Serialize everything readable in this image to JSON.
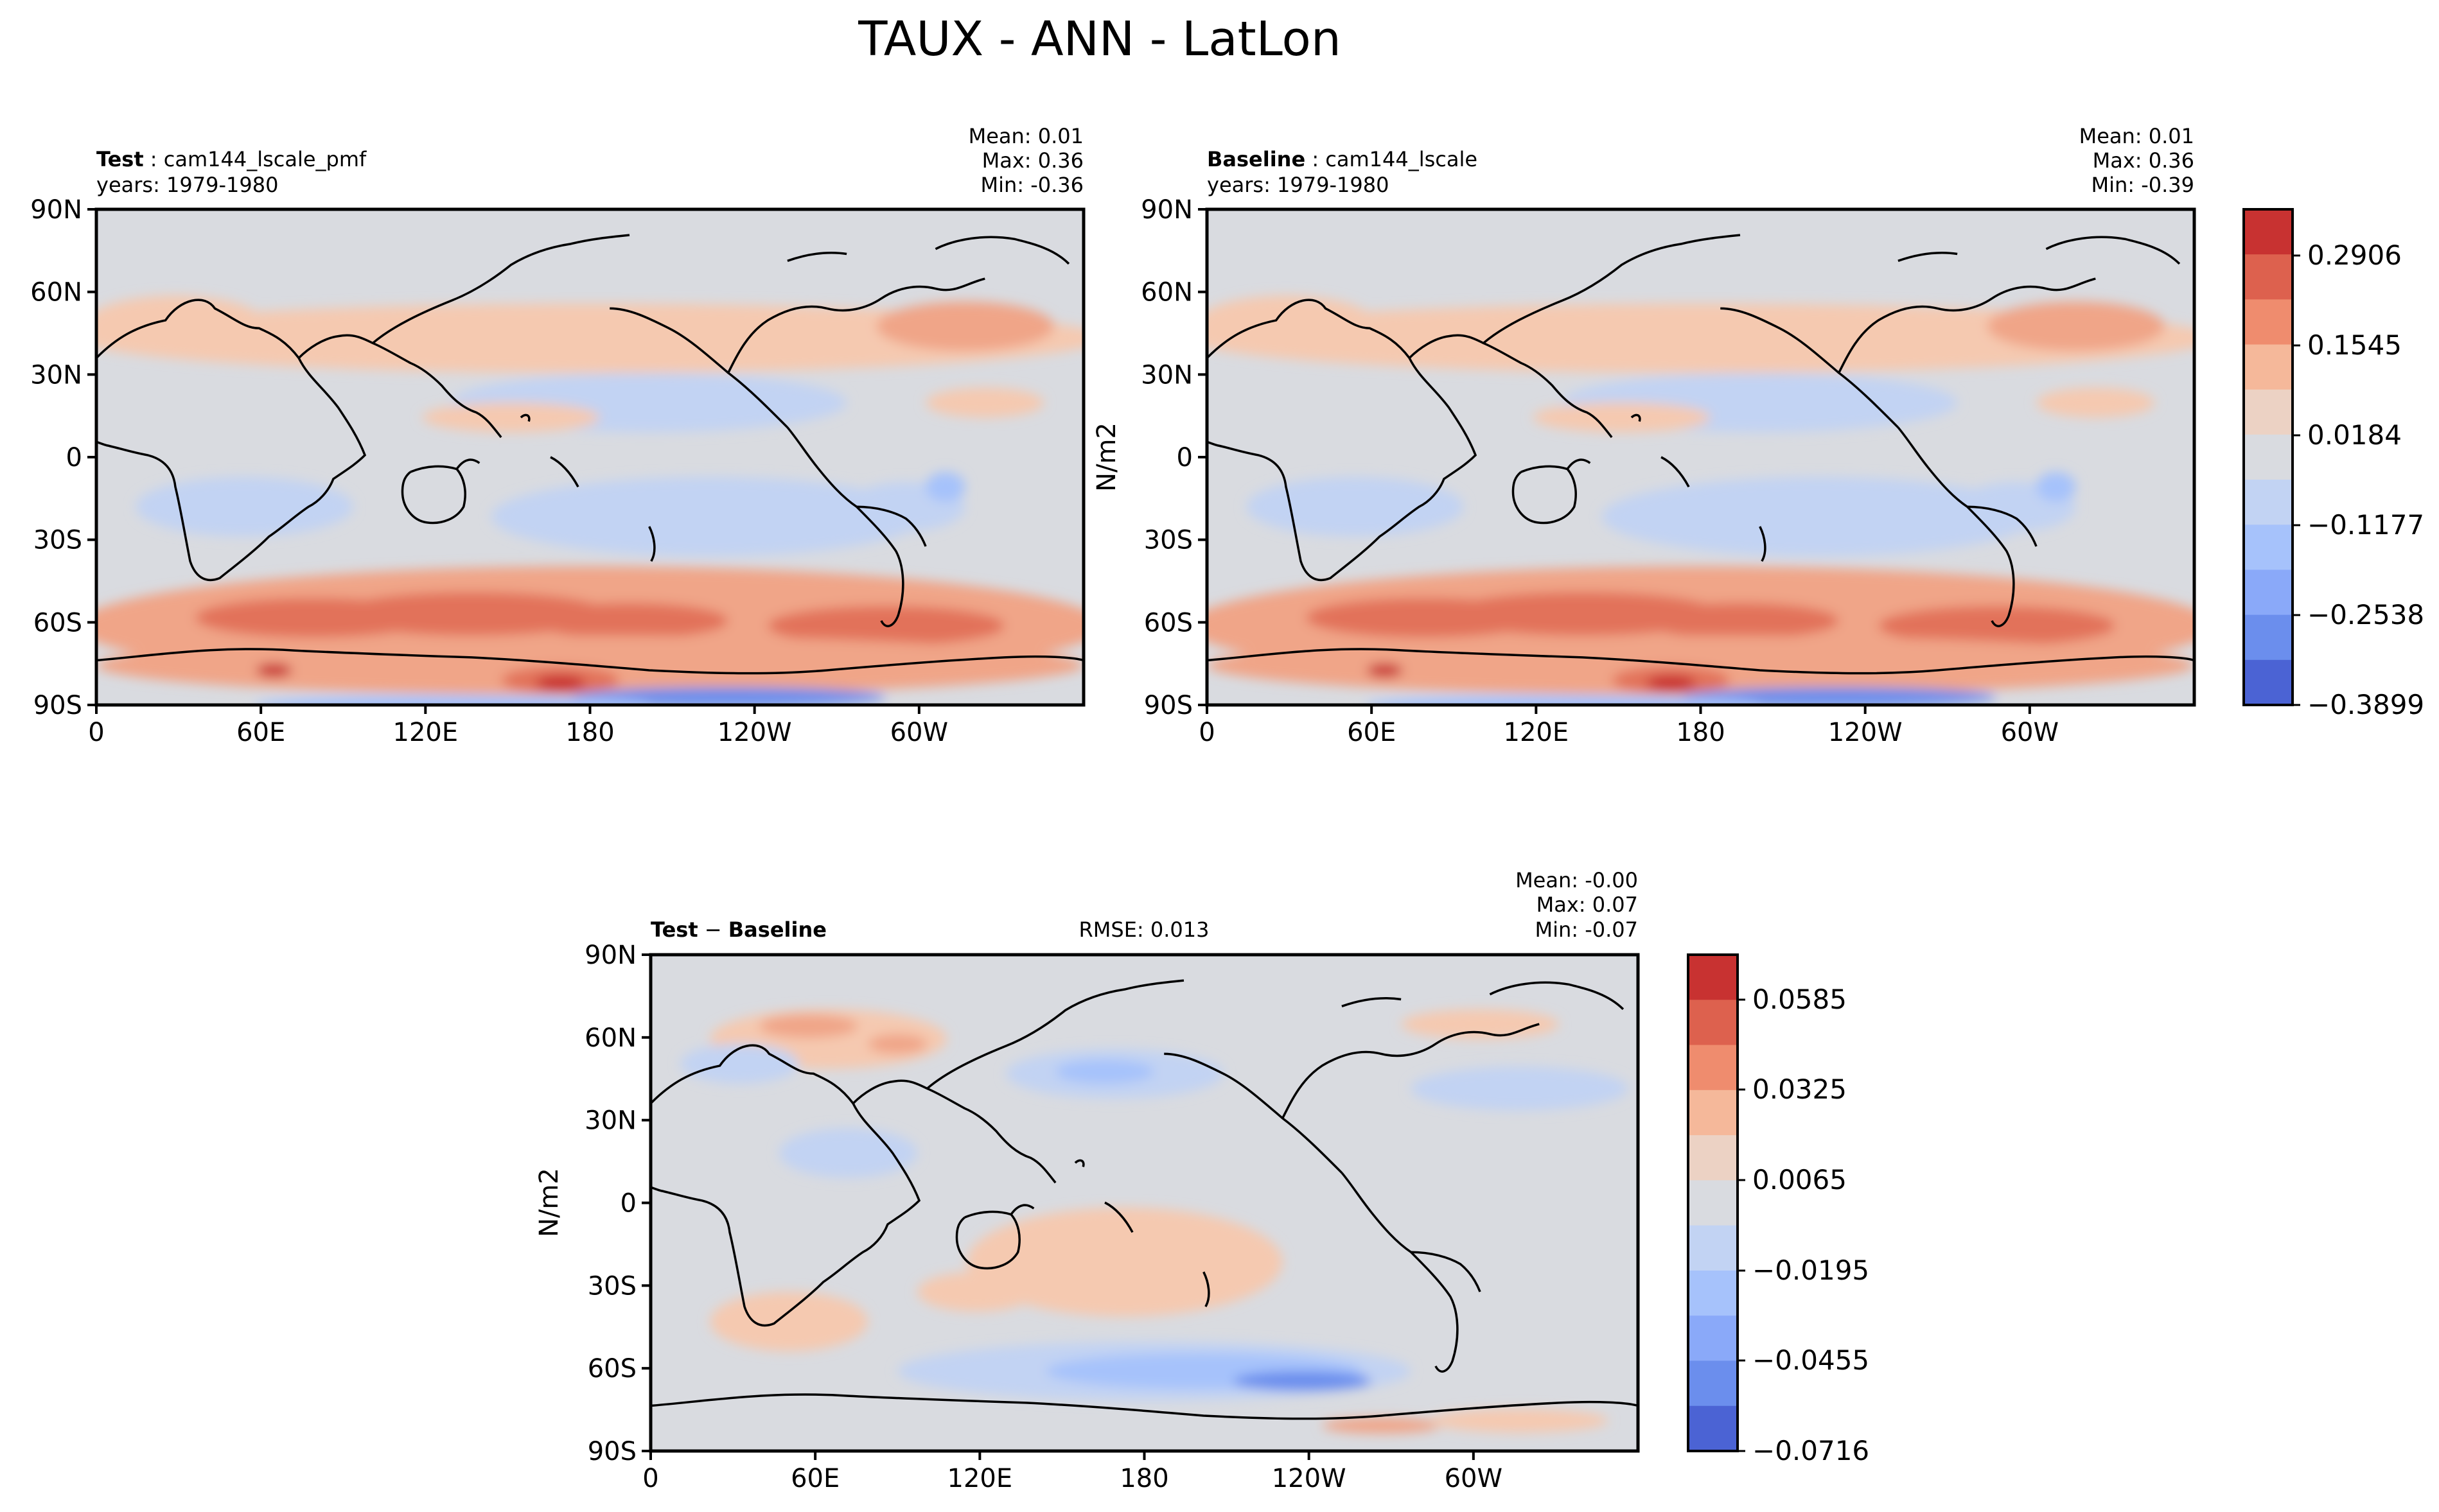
{
  "figure": {
    "title": "TAUX - ANN - LatLon"
  },
  "axes": {
    "lon_ticks": [
      "0",
      "60E",
      "120E",
      "180",
      "120W",
      "60W"
    ],
    "lat_ticks": [
      "90N",
      "60N",
      "30N",
      "0",
      "30S",
      "60S",
      "90S"
    ],
    "unit_label": "N/m2"
  },
  "panels": {
    "test": {
      "label": "Test",
      "case": "cam144_lscale_pmf",
      "years": "years: 1979-1980",
      "mean": "Mean:  0.01",
      "max": "Max:  0.36",
      "min": "Min: -0.36"
    },
    "baseline": {
      "label": "Baseline",
      "case": "cam144_lscale",
      "years": "years: 1979-1980",
      "mean": "Mean:  0.01",
      "max": "Max:  0.36",
      "min": "Min: -0.39"
    },
    "diff": {
      "label_a": "Test",
      "label_sep": "−",
      "label_b": "Baseline",
      "rmse": "RMSE: 0.013",
      "mean": "Mean: -0.00",
      "max": "Max:  0.07",
      "min": "Min: -0.07"
    }
  },
  "colorbars": {
    "main_ticks": [
      "0.2906",
      "0.1545",
      "0.0184",
      "−0.1177",
      "−0.2538",
      "−0.3899"
    ],
    "diff_ticks": [
      "0.0585",
      "0.0325",
      "0.0065",
      "−0.0195",
      "−0.0455",
      "−0.0716"
    ],
    "colors_top_to_bottom": [
      "#c83231",
      "#dd614e",
      "#ef8c6e",
      "#f5b89a",
      "#ecd2c4",
      "#d9dbe0",
      "#c2d3f3",
      "#a6c2fb",
      "#8aa9f9",
      "#6b8eed",
      "#4b63d4"
    ]
  },
  "map_colors": {
    "neutral": "#d9dbe0",
    "pos1": "#f5c9b0",
    "pos2": "#f0a588",
    "pos3": "#e2725a",
    "pos4": "#c83231",
    "neg1": "#c2d3f3",
    "neg2": "#a6c2fb",
    "neg3": "#6b8eed",
    "neg4": "#4b63d4",
    "coast": "#000000"
  }
}
